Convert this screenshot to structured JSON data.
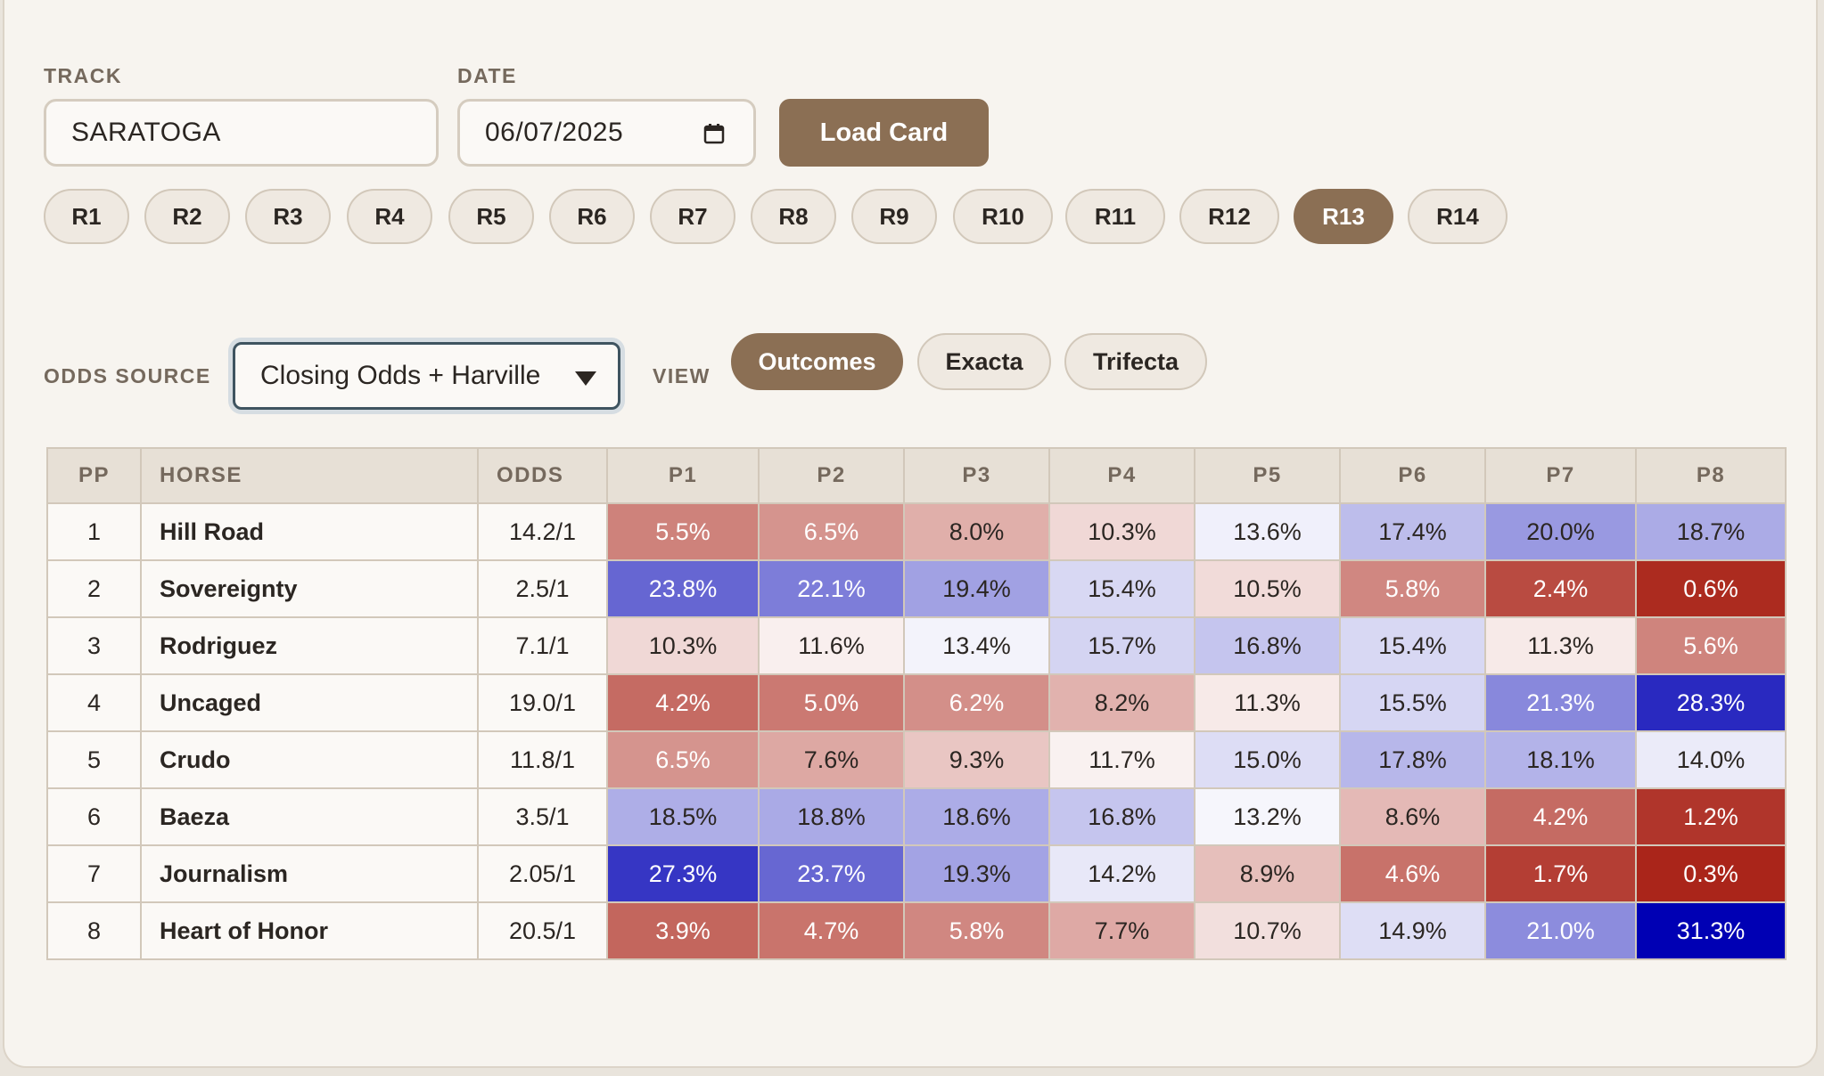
{
  "form": {
    "track_label": "TRACK",
    "track_value": "SARATOGA",
    "date_label": "DATE",
    "date_value": "06/07/2025",
    "load_button": "Load Card"
  },
  "races": [
    {
      "label": "R1",
      "active": false
    },
    {
      "label": "R2",
      "active": false
    },
    {
      "label": "R3",
      "active": false
    },
    {
      "label": "R4",
      "active": false
    },
    {
      "label": "R5",
      "active": false
    },
    {
      "label": "R6",
      "active": false
    },
    {
      "label": "R7",
      "active": false
    },
    {
      "label": "R8",
      "active": false
    },
    {
      "label": "R9",
      "active": false
    },
    {
      "label": "R10",
      "active": false
    },
    {
      "label": "R11",
      "active": false
    },
    {
      "label": "R12",
      "active": false
    },
    {
      "label": "R13",
      "active": true
    },
    {
      "label": "R14",
      "active": false
    }
  ],
  "controls": {
    "odds_source_label": "ODDS SOURCE",
    "odds_source_value": "Closing Odds + Harville",
    "view_label": "VIEW",
    "views": [
      {
        "label": "Outcomes",
        "active": true
      },
      {
        "label": "Exacta",
        "active": false
      },
      {
        "label": "Trifecta",
        "active": false
      }
    ]
  },
  "table": {
    "headers": [
      "PP",
      "HORSE",
      "ODDS",
      "P1",
      "P2",
      "P3",
      "P4",
      "P5",
      "P6",
      "P7",
      "P8"
    ],
    "rows": [
      {
        "pp": "1",
        "horse": "Hill Road",
        "odds": "14.2/1",
        "probs": [
          "5.5%",
          "6.5%",
          "8.0%",
          "10.3%",
          "13.6%",
          "17.4%",
          "20.0%",
          "18.7%"
        ]
      },
      {
        "pp": "2",
        "horse": "Sovereignty",
        "odds": "2.5/1",
        "probs": [
          "23.8%",
          "22.1%",
          "19.4%",
          "15.4%",
          "10.5%",
          "5.8%",
          "2.4%",
          "0.6%"
        ]
      },
      {
        "pp": "3",
        "horse": "Rodriguez",
        "odds": "7.1/1",
        "probs": [
          "10.3%",
          "11.6%",
          "13.4%",
          "15.7%",
          "16.8%",
          "15.4%",
          "11.3%",
          "5.6%"
        ]
      },
      {
        "pp": "4",
        "horse": "Uncaged",
        "odds": "19.0/1",
        "probs": [
          "4.2%",
          "5.0%",
          "6.2%",
          "8.2%",
          "11.3%",
          "15.5%",
          "21.3%",
          "28.3%"
        ]
      },
      {
        "pp": "5",
        "horse": "Crudo",
        "odds": "11.8/1",
        "probs": [
          "6.5%",
          "7.6%",
          "9.3%",
          "11.7%",
          "15.0%",
          "17.8%",
          "18.1%",
          "14.0%"
        ]
      },
      {
        "pp": "6",
        "horse": "Baeza",
        "odds": "3.5/1",
        "probs": [
          "18.5%",
          "18.8%",
          "18.6%",
          "16.8%",
          "13.2%",
          "8.6%",
          "4.2%",
          "1.2%"
        ]
      },
      {
        "pp": "7",
        "horse": "Journalism",
        "odds": "2.05/1",
        "probs": [
          "27.3%",
          "23.7%",
          "19.3%",
          "14.2%",
          "8.9%",
          "4.6%",
          "1.7%",
          "0.3%"
        ]
      },
      {
        "pp": "8",
        "horse": "Heart of Honor",
        "odds": "20.5/1",
        "probs": [
          "3.9%",
          "4.7%",
          "5.8%",
          "7.7%",
          "10.7%",
          "14.9%",
          "21.0%",
          "31.3%"
        ]
      }
    ]
  },
  "colors": {
    "accent": "#8b6f54",
    "heat_low": "#a82014",
    "heat_mid": "#ffffff",
    "heat_high": "#0000b4"
  }
}
